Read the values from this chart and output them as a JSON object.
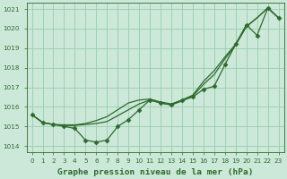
{
  "title": "Graphe pression niveau de la mer (hPa)",
  "hours": [
    0,
    1,
    2,
    3,
    4,
    5,
    6,
    7,
    8,
    9,
    10,
    11,
    12,
    13,
    14,
    15,
    16,
    17,
    18,
    19,
    20,
    21,
    22,
    23
  ],
  "ylim": [
    1013.7,
    1021.3
  ],
  "yticks": [
    1014,
    1015,
    1016,
    1017,
    1018,
    1019,
    1020,
    1021
  ],
  "line_marker": [
    1015.6,
    1015.2,
    1015.1,
    1015.0,
    1014.9,
    1014.3,
    1014.2,
    1014.3,
    1015.0,
    1015.35,
    1015.85,
    1016.35,
    1016.2,
    1016.1,
    1016.35,
    1016.5,
    1016.9,
    1017.05,
    1018.15,
    1019.2,
    1020.2,
    1019.65,
    1021.05,
    1020.55
  ],
  "line_smooth1": [
    1015.6,
    1015.2,
    1015.1,
    1015.05,
    1015.05,
    1015.1,
    1015.15,
    1015.25,
    1015.55,
    1015.85,
    1016.15,
    1016.35,
    1016.2,
    1016.1,
    1016.3,
    1016.55,
    1017.15,
    1017.65,
    1018.45,
    1019.15,
    1020.1,
    1020.55,
    1021.05,
    1020.55
  ],
  "line_smooth2": [
    1015.6,
    1015.2,
    1015.1,
    1015.08,
    1015.08,
    1015.15,
    1015.3,
    1015.5,
    1015.85,
    1016.2,
    1016.35,
    1016.4,
    1016.25,
    1016.15,
    1016.35,
    1016.6,
    1017.3,
    1017.85,
    1018.55,
    1019.2,
    1020.1,
    1020.55,
    1021.05,
    1020.55
  ],
  "line_color": "#2d6a2d",
  "bg_color": "#cce8d8",
  "grid_color": "#99ccb0",
  "label_color": "#2d6a2d",
  "marker": "D",
  "marker_size": 2.5,
  "linewidth": 0.9,
  "title_fontsize": 6.8,
  "tick_fontsize": 5.2
}
